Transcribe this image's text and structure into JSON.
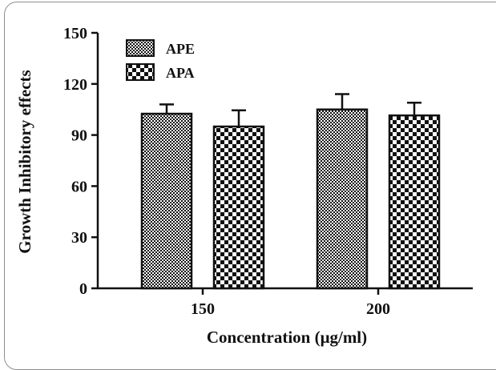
{
  "chart_data": {
    "type": "bar",
    "title": "",
    "xlabel": "Concentration (μg/ml)",
    "ylabel": "Growth Inhibitory effects",
    "categories": [
      "150",
      "200"
    ],
    "series": [
      {
        "name": "APE",
        "values": [
          102.5,
          105.0
        ],
        "error": [
          5.5,
          9.0
        ],
        "pattern": "fine-checker"
      },
      {
        "name": "APA",
        "values": [
          95.0,
          101.5
        ],
        "error": [
          9.5,
          7.5
        ],
        "pattern": "coarse-checker"
      }
    ],
    "ylim": [
      0,
      150
    ],
    "yticks": [
      0,
      30,
      60,
      90,
      120,
      150
    ],
    "grid": false,
    "legend": "top-left",
    "colors": {
      "axis": "#111111",
      "bar_dark": "#111111",
      "bar_light": "#ffffff"
    }
  }
}
